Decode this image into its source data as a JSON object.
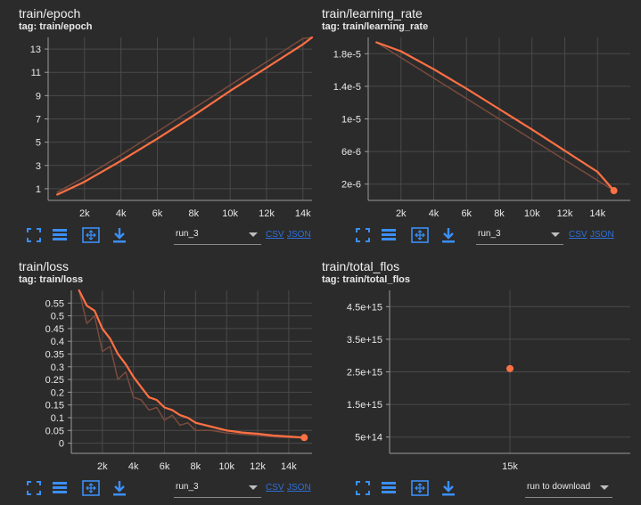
{
  "cards": [
    {
      "title": "train/epoch",
      "tag": "tag: train/epoch"
    },
    {
      "title": "train/learning_rate",
      "tag": "tag: train/learning_rate"
    },
    {
      "title": "train/loss",
      "tag": "tag: train/loss"
    },
    {
      "title": "train/total_flos",
      "tag": "tag: train/total_flos"
    }
  ],
  "toolbar": {
    "icons": [
      "fullscreen-icon",
      "data-table-icon",
      "fit-domain-icon",
      "download-icon"
    ],
    "run_select": "run_3",
    "run_download": "run to download",
    "csv": "CSV",
    "json": "JSON"
  },
  "colors": {
    "line": "#ff7043",
    "raw_line": "#7a4a3d",
    "icon": "#3b8ff5",
    "grid": "#4a4a4a"
  },
  "chart_data": [
    {
      "type": "line",
      "title": "train/epoch",
      "xlim": [
        0,
        14500
      ],
      "ylim": [
        0,
        14
      ],
      "x_ticks": [
        "2k",
        "4k",
        "6k",
        "8k",
        "10k",
        "12k",
        "14k"
      ],
      "y_ticks": [
        "1",
        "3",
        "5",
        "7",
        "9",
        "11",
        "13"
      ],
      "grid": true,
      "series": [
        {
          "role": "smoothed",
          "x": [
            500,
            2000,
            4000,
            6000,
            8000,
            10000,
            12000,
            14000,
            14500
          ],
          "y": [
            0.5,
            1.6,
            3.4,
            5.3,
            7.3,
            9.4,
            11.4,
            13.4,
            14.0
          ]
        },
        {
          "role": "raw",
          "x": [
            500,
            2000,
            4000,
            6000,
            8000,
            10000,
            12000,
            14000,
            14500
          ],
          "y": [
            0.7,
            2.0,
            3.9,
            5.9,
            7.9,
            9.9,
            11.9,
            13.9,
            14.0
          ]
        }
      ]
    },
    {
      "type": "line",
      "title": "train/learning_rate",
      "xlim": [
        0,
        16000
      ],
      "ylim": [
        0,
        2e-05
      ],
      "x_ticks": [
        "2k",
        "4k",
        "6k",
        "8k",
        "10k",
        "12k",
        "14k"
      ],
      "y_ticks": [
        "2e-6",
        "6e-6",
        "1e-5",
        "1.4e-5",
        "1.8e-5"
      ],
      "grid": true,
      "series": [
        {
          "role": "smoothed",
          "x": [
            500,
            2000,
            4000,
            6000,
            8000,
            10000,
            12000,
            14000,
            15000
          ],
          "y": [
            1.94e-05,
            1.83e-05,
            1.61e-05,
            1.37e-05,
            1.12e-05,
            8.7e-06,
            6.1e-06,
            3.5e-06,
            1.2e-06
          ]
        },
        {
          "role": "raw",
          "x": [
            500,
            15000
          ],
          "y": [
            1.94e-05,
            1.2e-06
          ]
        }
      ],
      "end_point": {
        "x": 15000,
        "y": 1.2e-06
      }
    },
    {
      "type": "line",
      "title": "train/loss",
      "xlim": [
        0,
        15500
      ],
      "ylim": [
        -0.04,
        0.6
      ],
      "x_ticks": [
        "2k",
        "4k",
        "6k",
        "8k",
        "10k",
        "12k",
        "14k"
      ],
      "y_ticks": [
        "0",
        "0.05",
        "0.1",
        "0.15",
        "0.2",
        "0.25",
        "0.3",
        "0.35",
        "0.4",
        "0.45",
        "0.5",
        "0.55"
      ],
      "grid": true,
      "series": [
        {
          "role": "smoothed",
          "x": [
            500,
            1000,
            1500,
            2000,
            2500,
            3000,
            3500,
            4000,
            4500,
            5000,
            5500,
            6000,
            6500,
            7000,
            7500,
            8000,
            9000,
            10000,
            11000,
            12000,
            13000,
            14000,
            15000
          ],
          "y": [
            0.6,
            0.54,
            0.52,
            0.45,
            0.41,
            0.35,
            0.31,
            0.26,
            0.22,
            0.18,
            0.17,
            0.14,
            0.13,
            0.11,
            0.1,
            0.08,
            0.065,
            0.05,
            0.042,
            0.037,
            0.03,
            0.026,
            0.022
          ]
        },
        {
          "role": "raw",
          "x": [
            500,
            1000,
            1500,
            2000,
            2500,
            3000,
            3500,
            4000,
            4500,
            5000,
            5500,
            6000,
            6500,
            7000,
            7500,
            8000,
            9000,
            10000,
            11000,
            12000,
            13000,
            14000,
            15000
          ],
          "y": [
            0.6,
            0.47,
            0.5,
            0.36,
            0.38,
            0.25,
            0.28,
            0.18,
            0.17,
            0.13,
            0.14,
            0.09,
            0.11,
            0.07,
            0.08,
            0.05,
            0.05,
            0.04,
            0.035,
            0.03,
            0.025,
            0.022,
            0.02
          ]
        }
      ],
      "end_point": {
        "x": 15000,
        "y": 0.022
      }
    },
    {
      "type": "scatter",
      "title": "train/total_flos",
      "xlim": [
        10000,
        20000
      ],
      "ylim": [
        0,
        5000000000000000
      ],
      "x_ticks": [
        "15k"
      ],
      "y_ticks": [
        "5e+14",
        "1.5e+15",
        "2.5e+15",
        "3.5e+15",
        "4.5e+15"
      ],
      "grid": true,
      "series": [
        {
          "role": "smoothed",
          "x": [
            15000
          ],
          "y": [
            2600000000000000
          ]
        }
      ],
      "end_point": {
        "x": 15000,
        "y": 2600000000000000
      }
    }
  ]
}
